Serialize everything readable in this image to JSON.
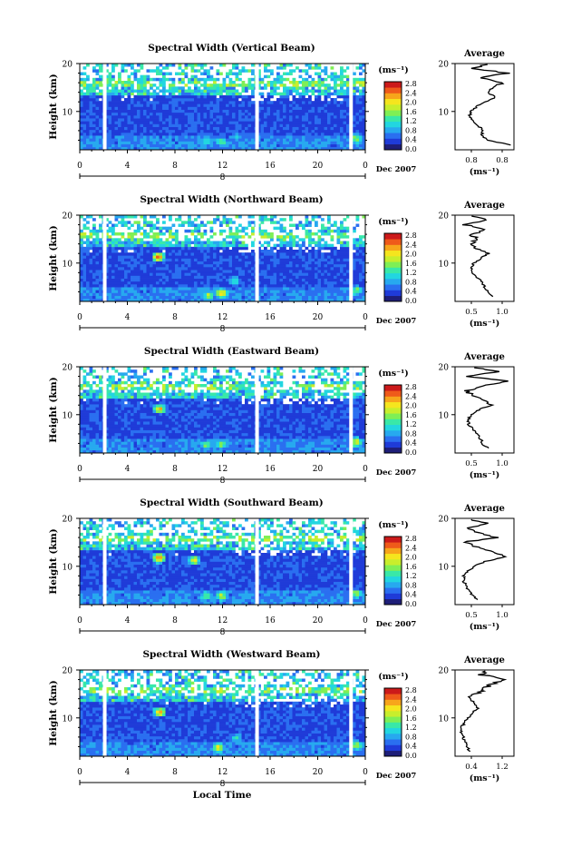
{
  "figure": {
    "x_axis_title": "Local Time",
    "date_label": "Dec 2007",
    "day_label": "8",
    "ylabel": "Height (km)",
    "x_ticks": [
      "0",
      "4",
      "8",
      "12",
      "16",
      "20",
      "0"
    ],
    "y_ticks": [
      "20",
      "10"
    ],
    "colorbar_unit": "(ms⁻¹)",
    "colorbar_ticks": [
      "2.8",
      "2.4",
      "2.0",
      "1.6",
      "1.2",
      "0.8",
      "0.4",
      "0.0"
    ],
    "colorbar_colors": [
      "#1e1e78",
      "#1f3bd8",
      "#2a6ff0",
      "#27a9ef",
      "#22d6e0",
      "#39e8a8",
      "#7fef55",
      "#c8ee2c",
      "#f5e51e",
      "#f7a51b",
      "#ef5a1a",
      "#cc1a1a"
    ],
    "average_title": "Average",
    "average_xlabel": "(ms⁻¹)"
  },
  "chart_data": [
    {
      "type": "heatmap",
      "title": "Spectral Width (Vertical Beam)",
      "xlabel": "Local Time",
      "ylabel": "Height (km)",
      "xlim": [
        0,
        24
      ],
      "ylim": [
        2,
        20
      ],
      "colorbar_range": [
        0.0,
        2.8
      ],
      "data_gaps_hours": [
        2.1,
        14.9,
        22.8
      ],
      "hotspots": [
        {
          "t": 10.5,
          "h": 3.5,
          "v": 1.2
        },
        {
          "t": 11.8,
          "h": 3.5,
          "v": 1.4
        },
        {
          "t": 23.1,
          "h": 4.0,
          "v": 1.8
        },
        {
          "t": 13.0,
          "h": 4.5,
          "v": 0.8
        }
      ],
      "profile": {
        "title": "Average",
        "xlabel": "(ms⁻¹)",
        "xlim": [
          0.6,
          0.85
        ],
        "xticks": [
          "0.8",
          "0.8"
        ],
        "ylim": [
          2,
          20
        ],
        "yticks": [
          "20",
          "10"
        ],
        "heights": [
          3,
          4,
          5,
          6,
          7,
          8,
          9,
          10,
          11,
          12,
          13,
          14,
          15,
          16,
          17,
          18,
          19,
          20
        ],
        "values": [
          0.84,
          0.74,
          0.71,
          0.72,
          0.7,
          0.68,
          0.66,
          0.67,
          0.69,
          0.73,
          0.77,
          0.74,
          0.76,
          0.8,
          0.7,
          0.82,
          0.67,
          0.74
        ]
      }
    },
    {
      "type": "heatmap",
      "title": "Spectral Width (Northward Beam)",
      "xlabel": "Local Time",
      "ylabel": "Height (km)",
      "xlim": [
        0,
        24
      ],
      "ylim": [
        2,
        20
      ],
      "colorbar_range": [
        0.0,
        2.8
      ],
      "data_gaps_hours": [
        2.1,
        14.9,
        22.8
      ],
      "hotspots": [
        {
          "t": 6.5,
          "h": 11.0,
          "v": 2.6
        },
        {
          "t": 10.7,
          "h": 3.0,
          "v": 1.8
        },
        {
          "t": 11.8,
          "h": 3.5,
          "v": 2.2
        },
        {
          "t": 12.9,
          "h": 6.0,
          "v": 1.2
        },
        {
          "t": 23.1,
          "h": 4.0,
          "v": 1.6
        }
      ],
      "profile": {
        "title": "Average",
        "xlabel": "(ms⁻¹)",
        "xlim": [
          0.4,
          1.0
        ],
        "xticks": [
          "0.5",
          "1.0"
        ],
        "ylim": [
          2,
          20
        ],
        "yticks": [
          "20",
          "10"
        ],
        "heights": [
          3,
          4,
          5,
          6,
          7,
          8,
          9,
          10,
          11,
          12,
          13,
          14,
          15,
          16,
          17,
          18,
          19,
          20
        ],
        "values": [
          0.78,
          0.74,
          0.7,
          0.68,
          0.62,
          0.58,
          0.57,
          0.59,
          0.66,
          0.74,
          0.62,
          0.55,
          0.65,
          0.55,
          0.72,
          0.5,
          0.7,
          0.58
        ]
      }
    },
    {
      "type": "heatmap",
      "title": "Spectral Width (Eastward Beam)",
      "xlabel": "Local Time",
      "ylabel": "Height (km)",
      "xlim": [
        0,
        24
      ],
      "ylim": [
        2,
        20
      ],
      "colorbar_range": [
        0.0,
        2.8
      ],
      "data_gaps_hours": [
        2.1,
        14.9,
        22.8
      ],
      "hotspots": [
        {
          "t": 6.6,
          "h": 11.0,
          "v": 2.2
        },
        {
          "t": 10.5,
          "h": 3.5,
          "v": 1.6
        },
        {
          "t": 11.8,
          "h": 3.5,
          "v": 1.6
        },
        {
          "t": 23.1,
          "h": 4.0,
          "v": 2.0
        }
      ],
      "profile": {
        "title": "Average",
        "xlabel": "(ms⁻¹)",
        "xlim": [
          0.4,
          1.05
        ],
        "xticks": [
          "0.5",
          "1.0"
        ],
        "ylim": [
          2,
          20
        ],
        "yticks": [
          "20",
          "10"
        ],
        "heights": [
          3,
          4,
          5,
          6,
          7,
          8,
          9,
          10,
          11,
          12,
          13,
          14,
          15,
          16,
          17,
          18,
          19,
          20
        ],
        "values": [
          0.76,
          0.7,
          0.68,
          0.64,
          0.6,
          0.55,
          0.55,
          0.58,
          0.66,
          0.8,
          0.72,
          0.6,
          0.52,
          0.72,
          0.95,
          0.55,
          0.85,
          0.6
        ]
      }
    },
    {
      "type": "heatmap",
      "title": "Spectral Width (Southward Beam)",
      "xlabel": "Local Time",
      "ylabel": "Height (km)",
      "xlim": [
        0,
        24
      ],
      "ylim": [
        2,
        20
      ],
      "colorbar_range": [
        0.0,
        2.8
      ],
      "data_gaps_hours": [
        2.1,
        14.9,
        22.8
      ],
      "hotspots": [
        {
          "t": 6.5,
          "h": 11.5,
          "v": 2.6
        },
        {
          "t": 9.5,
          "h": 11.0,
          "v": 2.0
        },
        {
          "t": 10.5,
          "h": 3.5,
          "v": 1.6
        },
        {
          "t": 11.8,
          "h": 3.5,
          "v": 1.8
        },
        {
          "t": 23.1,
          "h": 4.0,
          "v": 1.8
        }
      ],
      "profile": {
        "title": "Average",
        "xlabel": "(ms⁻¹)",
        "xlim": [
          0.5,
          1.05
        ],
        "xticks": [
          "0.5",
          "1.0"
        ],
        "ylim": [
          2,
          20
        ],
        "yticks": [
          "20",
          "10"
        ],
        "heights": [
          3,
          4,
          5,
          6,
          7,
          8,
          9,
          10,
          11,
          12,
          13,
          14,
          15,
          16,
          17,
          18,
          19,
          20
        ],
        "values": [
          0.7,
          0.66,
          0.62,
          0.6,
          0.58,
          0.58,
          0.62,
          0.68,
          0.78,
          0.98,
          0.85,
          0.72,
          0.58,
          0.88,
          0.72,
          0.62,
          0.8,
          0.62
        ]
      }
    },
    {
      "type": "heatmap",
      "title": "Spectral Width (Westward Beam)",
      "xlabel": "Local Time",
      "ylabel": "Height (km)",
      "xlim": [
        0,
        24
      ],
      "ylim": [
        2,
        20
      ],
      "colorbar_range": [
        0.0,
        2.8
      ],
      "data_gaps_hours": [
        2.1,
        14.9,
        22.8
      ],
      "hotspots": [
        {
          "t": 6.6,
          "h": 11.0,
          "v": 2.4
        },
        {
          "t": 11.5,
          "h": 3.5,
          "v": 2.2
        },
        {
          "t": 13.0,
          "h": 5.5,
          "v": 1.2
        },
        {
          "t": 23.1,
          "h": 4.0,
          "v": 1.8
        },
        {
          "t": 21.0,
          "h": 17.5,
          "v": 1.4
        }
      ],
      "profile": {
        "title": "Average",
        "xlabel": "(ms⁻¹)",
        "xlim": [
          0.4,
          1.3
        ],
        "xticks": [
          "0.4",
          "1.2"
        ],
        "ylim": [
          2,
          20
        ],
        "yticks": [
          "20",
          "10"
        ],
        "heights": [
          3,
          4,
          5,
          6,
          7,
          8,
          9,
          10,
          11,
          12,
          13,
          14,
          15,
          16,
          17,
          18,
          19,
          20
        ],
        "values": [
          0.62,
          0.58,
          0.55,
          0.52,
          0.5,
          0.5,
          0.54,
          0.6,
          0.66,
          0.74,
          0.7,
          0.62,
          0.72,
          0.84,
          0.95,
          1.2,
          0.8,
          0.9
        ]
      }
    }
  ]
}
